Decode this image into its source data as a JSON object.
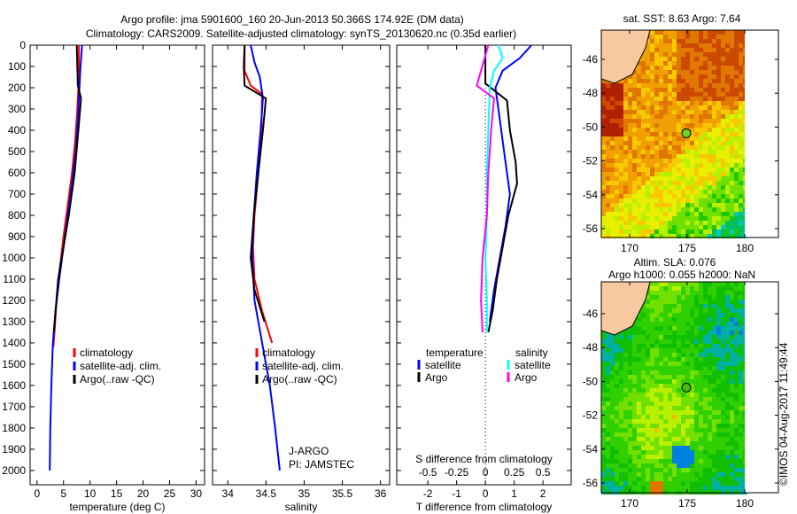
{
  "titles": {
    "line1": "Argo profile: jma 5901600_160 20-Jun-2013 50.366S 174.92E (DM data)",
    "line2": "Climatology: CARS2009. Satellite-adjusted climatology: synTS_20130620.nc (0.35d earlier)"
  },
  "colors": {
    "climatology": "#ff0000",
    "satellite": "#0000ff",
    "argo": "#000000",
    "sal_satellite": "#00ffff",
    "sal_argo": "#ff00ff"
  },
  "chart_data": [
    {
      "type": "line",
      "title": "",
      "xlabel": "temperature (deg C)",
      "ylabel": "",
      "xlim": [
        -1.3,
        31.6
      ],
      "ylim": [
        2067,
        0
      ],
      "xticks": [
        "0",
        "5",
        "10",
        "15",
        "20",
        "25",
        "30"
      ],
      "yticks": [
        "0",
        "100",
        "200",
        "300",
        "400",
        "500",
        "600",
        "700",
        "800",
        "900",
        "1000",
        "1100",
        "1200",
        "1300",
        "1400",
        "1500",
        "1600",
        "1700",
        "1800",
        "1900",
        "2000"
      ],
      "legend": [
        "climatology",
        "satellite-adj. clim.",
        "Argo(..raw -QC)"
      ],
      "series": [
        {
          "name": "climatology",
          "points": [
            [
              7.9,
              0
            ],
            [
              7.9,
              100
            ],
            [
              7.8,
              200
            ],
            [
              7.6,
              300
            ],
            [
              7.2,
              450
            ],
            [
              6.6,
              600
            ],
            [
              5.8,
              750
            ],
            [
              5.0,
              900
            ],
            [
              4.3,
              1050
            ],
            [
              3.7,
              1200
            ],
            [
              3.3,
              1350
            ],
            [
              3.1,
              1420
            ]
          ]
        },
        {
          "name": "satellite-adj. clim.",
          "points": [
            [
              8.5,
              0
            ],
            [
              8.2,
              100
            ],
            [
              8.0,
              200
            ],
            [
              7.7,
              350
            ],
            [
              7.3,
              500
            ],
            [
              6.6,
              650
            ],
            [
              5.8,
              800
            ],
            [
              5.0,
              950
            ],
            [
              4.2,
              1100
            ],
            [
              3.5,
              1250
            ],
            [
              3.0,
              1400
            ],
            [
              2.7,
              1600
            ],
            [
              2.5,
              1800
            ],
            [
              2.4,
              2000
            ]
          ]
        },
        {
          "name": "Argo(..raw -QC)",
          "points": [
            [
              7.5,
              0
            ],
            [
              7.6,
              100
            ],
            [
              7.7,
              190
            ],
            [
              8.3,
              250
            ],
            [
              7.8,
              400
            ],
            [
              7.1,
              600
            ],
            [
              6.0,
              800
            ],
            [
              5.0,
              950
            ],
            [
              4.0,
              1100
            ],
            [
              3.5,
              1250
            ],
            [
              3.2,
              1350
            ]
          ]
        }
      ]
    },
    {
      "type": "line",
      "title": "",
      "xlabel": "salinity",
      "ylabel": "",
      "xlim": [
        33.8,
        36.12
      ],
      "ylim": [
        2067,
        0
      ],
      "xticks": [
        "34",
        "34.5",
        "35",
        "35.5",
        "36"
      ],
      "legend": [
        "climatology",
        "satellite-adj. clim.",
        "Argo(..raw -QC)"
      ],
      "annotations": [
        "J-ARGO",
        "PI: JAMSTEC"
      ],
      "series": [
        {
          "name": "climatology",
          "points": [
            [
              34.22,
              0
            ],
            [
              34.22,
              120
            ],
            [
              34.3,
              190
            ],
            [
              34.45,
              230
            ],
            [
              34.44,
              400
            ],
            [
              34.4,
              600
            ],
            [
              34.35,
              800
            ],
            [
              34.33,
              950
            ],
            [
              34.35,
              1100
            ],
            [
              34.45,
              1250
            ],
            [
              34.58,
              1400
            ]
          ]
        },
        {
          "name": "satellite-adj. clim.",
          "points": [
            [
              34.3,
              0
            ],
            [
              34.35,
              80
            ],
            [
              34.42,
              150
            ],
            [
              34.46,
              250
            ],
            [
              34.43,
              400
            ],
            [
              34.38,
              600
            ],
            [
              34.34,
              800
            ],
            [
              34.32,
              1000
            ],
            [
              34.35,
              1200
            ],
            [
              34.45,
              1400
            ],
            [
              34.55,
              1600
            ],
            [
              34.62,
              1800
            ],
            [
              34.68,
              2000
            ]
          ]
        },
        {
          "name": "Argo(..raw -QC)",
          "points": [
            [
              34.22,
              0
            ],
            [
              34.21,
              100
            ],
            [
              34.22,
              190
            ],
            [
              34.5,
              250
            ],
            [
              34.46,
              400
            ],
            [
              34.4,
              600
            ],
            [
              34.34,
              800
            ],
            [
              34.3,
              1000
            ],
            [
              34.35,
              1150
            ],
            [
              34.48,
              1300
            ]
          ]
        }
      ]
    },
    {
      "type": "line",
      "title": "",
      "xlabel": "T difference from climatology",
      "x2label": "S difference from climatology",
      "xlim": [
        -3.08,
        2.98
      ],
      "ylim": [
        2067,
        0
      ],
      "xticks": [
        "-2",
        "-1",
        "0",
        "1",
        "2"
      ],
      "x2ticks": [
        "-0.5",
        "-0.25",
        "0",
        "0.25",
        "0.5"
      ],
      "legend": {
        "temperature_title": "temperature",
        "salinity_title": "salinity",
        "items": [
          "satellite",
          "Argo",
          "satellite",
          "Argo"
        ]
      },
      "series": [
        {
          "name": "temperature satellite",
          "points": [
            [
              1.6,
              0
            ],
            [
              1.2,
              60
            ],
            [
              0.6,
              120
            ],
            [
              0.35,
              200
            ],
            [
              0.45,
              300
            ],
            [
              0.6,
              450
            ],
            [
              0.75,
              600
            ],
            [
              0.85,
              700
            ],
            [
              0.7,
              850
            ],
            [
              0.5,
              1000
            ],
            [
              0.3,
              1150
            ],
            [
              0.15,
              1300
            ]
          ]
        },
        {
          "name": "temperature Argo",
          "points": [
            [
              0.0,
              0
            ],
            [
              0.0,
              180
            ],
            [
              0.75,
              260
            ],
            [
              0.85,
              400
            ],
            [
              1.05,
              550
            ],
            [
              1.1,
              650
            ],
            [
              0.8,
              800
            ],
            [
              0.6,
              950
            ],
            [
              0.4,
              1100
            ],
            [
              0.25,
              1250
            ],
            [
              0.1,
              1350
            ]
          ]
        },
        {
          "name": "salinity satellite",
          "points": [
            [
              0.45,
              0
            ],
            [
              0.6,
              60
            ],
            [
              0.3,
              120
            ],
            [
              0.15,
              200
            ],
            [
              0.1,
              400
            ],
            [
              0.05,
              600
            ],
            [
              0.05,
              800
            ],
            [
              0.0,
              1000
            ],
            [
              0.05,
              1200
            ],
            [
              0.05,
              1350
            ]
          ]
        },
        {
          "name": "salinity Argo",
          "points": [
            [
              0.1,
              0
            ],
            [
              -0.3,
              190
            ],
            [
              0.3,
              250
            ],
            [
              0.2,
              400
            ],
            [
              0.1,
              600
            ],
            [
              0.05,
              800
            ],
            [
              -0.1,
              1000
            ],
            [
              -0.15,
              1200
            ],
            [
              -0.1,
              1350
            ]
          ]
        }
      ]
    }
  ],
  "maps": [
    {
      "title": "sat. SST: 8.63 Argo: 7.64",
      "lat_ticks": [
        "-46",
        "-48",
        "-50",
        "-52",
        "-54",
        "-56"
      ],
      "lon_ticks": [
        "170",
        "175",
        "180"
      ],
      "argo_lon": 174.92,
      "argo_lat": -50.366
    },
    {
      "title1": "Altim. SLA: 0.076",
      "title2": "Argo h1000: 0.055 h2000: NaN",
      "lat_ticks": [
        "-46",
        "-48",
        "-50",
        "-52",
        "-54",
        "-56"
      ],
      "lon_ticks": [
        "170",
        "175",
        "180"
      ],
      "argo_lon": 174.92,
      "argo_lat": -50.366
    }
  ],
  "credit": "©IMOS 04-Aug-2017 11:49:44"
}
